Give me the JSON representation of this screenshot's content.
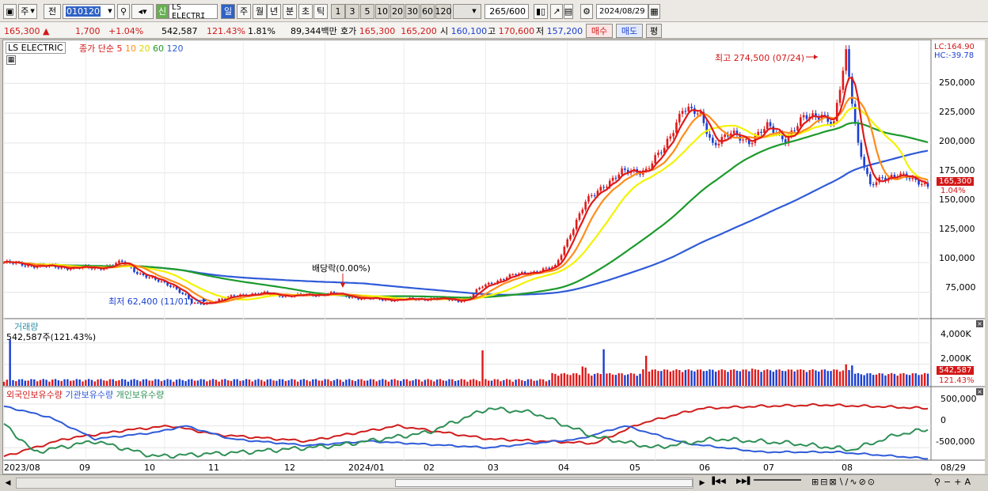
{
  "toolbar": {
    "market": "주",
    "prev": "전",
    "code": "010120",
    "new_badge": "신",
    "stock_name": "LS ELECTRI",
    "periods": [
      "일",
      "주",
      "월",
      "년",
      "분",
      "초",
      "틱"
    ],
    "minutes": [
      "1",
      "3",
      "5",
      "10",
      "20",
      "30",
      "60",
      "120"
    ],
    "count": "265",
    "count_total": "/600",
    "date": "2024/08/29"
  },
  "quote": {
    "price": "165,300",
    "change": "1,700",
    "change_pct": "+1.04%",
    "volume": "542,587",
    "volume_ratio": "121.43%",
    "turnover_pct": "1.81%",
    "amount": "89,344백만",
    "bid_label": "호가",
    "ask": "165,300",
    "bid": "165,200",
    "open_label": "시",
    "open": "160,100",
    "high_label": "고",
    "high": "170,600",
    "low_label": "저",
    "low": "157,200",
    "buy_label": "매수",
    "sell_label": "매도",
    "eval_label": "평"
  },
  "price_panel": {
    "title": "LS ELECTRIC",
    "ma_label": "종가 단순",
    "ma": [
      {
        "label": "5",
        "color": "#e01a1a"
      },
      {
        "label": "10",
        "color": "#ff8c1a"
      },
      {
        "label": "20",
        "color": "#ecec17"
      },
      {
        "label": "60",
        "color": "#1d9a2c"
      },
      {
        "label": "120",
        "color": "#2f5bd8"
      }
    ],
    "lc": "LC:164.90",
    "hc": "HC:-39.78",
    "high_note": "최고 274,500 (07/24)",
    "low_note": "최저 62,400 (11/01)",
    "div_note": "배당락(0.00%)",
    "current_price": "165,300",
    "current_pct": "1.04%",
    "y_ticks": [
      "250,000",
      "225,000",
      "200,000",
      "175,000",
      "150,000",
      "125,000",
      "100,000",
      "75,000"
    ]
  },
  "volume_panel": {
    "title": "거래량",
    "value_label": "542,587주(121.43%)",
    "y_ticks": [
      "4,000K",
      "2,000K"
    ],
    "current": "542,587",
    "current_pct": "121.43%"
  },
  "holding_panel": {
    "legends": [
      {
        "label": "외국인보유수량",
        "color": "#d01c1c"
      },
      {
        "label": "기관보유수량",
        "color": "#2f5bd8"
      },
      {
        "label": "개인보유수량",
        "color": "#2e8f55"
      }
    ],
    "y_ticks": [
      "500,000",
      "0",
      "-500,000"
    ]
  },
  "x_axis": [
    "2023/08",
    "09",
    "10",
    "11",
    "12",
    "2024/01",
    "02",
    "03",
    "04",
    "05",
    "06",
    "07",
    "08",
    "08/29"
  ],
  "chart_data": {
    "type": "line",
    "x_range": [
      "2023/08",
      "2024/08/29"
    ],
    "price_ylim": [
      55000,
      280000
    ],
    "price_close": [
      [
        0,
        100000
      ],
      [
        7,
        98000
      ],
      [
        13,
        97000
      ],
      [
        18,
        96000
      ],
      [
        24,
        96000
      ],
      [
        30,
        95000
      ],
      [
        34,
        97000
      ],
      [
        39,
        100000
      ],
      [
        44,
        92000
      ],
      [
        50,
        85000
      ],
      [
        56,
        80000
      ],
      [
        60,
        72000
      ],
      [
        62,
        66000
      ],
      [
        64,
        65000
      ],
      [
        70,
        68000
      ],
      [
        78,
        73000
      ],
      [
        86,
        74000
      ],
      [
        94,
        72000
      ],
      [
        102,
        73000
      ],
      [
        108,
        74000
      ],
      [
        113,
        72000
      ],
      [
        118,
        70000
      ],
      [
        126,
        69000
      ],
      [
        134,
        69000
      ],
      [
        142,
        70000
      ],
      [
        150,
        68000
      ],
      [
        153,
        70000
      ],
      [
        158,
        80000
      ],
      [
        166,
        88000
      ],
      [
        174,
        92000
      ],
      [
        182,
        96000
      ],
      [
        187,
        125000
      ],
      [
        192,
        150000
      ],
      [
        198,
        165000
      ],
      [
        204,
        175000
      ],
      [
        212,
        178000
      ],
      [
        218,
        195000
      ],
      [
        224,
        230000
      ],
      [
        230,
        222000
      ],
      [
        234,
        200000
      ],
      [
        240,
        207000
      ],
      [
        246,
        202000
      ],
      [
        252,
        213000
      ],
      [
        258,
        204000
      ],
      [
        264,
        220000
      ],
      [
        270,
        225000
      ],
      [
        274,
        215000
      ],
      [
        278,
        274500
      ],
      [
        282,
        200000
      ],
      [
        286,
        163000
      ],
      [
        290,
        170000
      ],
      [
        295,
        175000
      ],
      [
        300,
        168000
      ],
      [
        305,
        165300
      ]
    ],
    "volume_ylim": [
      0,
      5000
    ],
    "holdings_ylim": [
      -750000,
      700000
    ]
  }
}
